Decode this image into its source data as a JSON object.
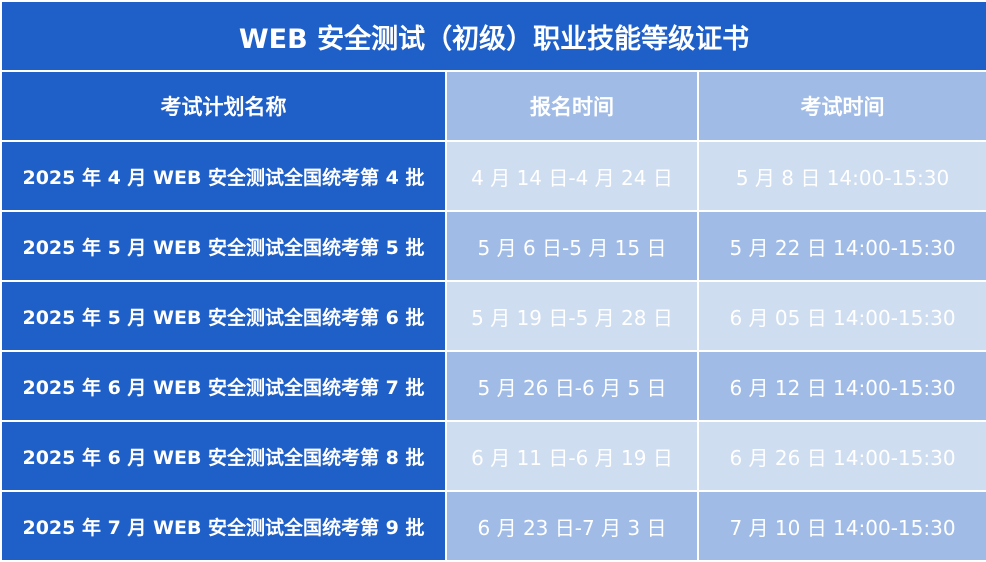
{
  "title": "WEB 安全测试（初级）职业技能等级证书",
  "headers": [
    "考试计划名称",
    "报名时间",
    "考试时间"
  ],
  "rows": [
    [
      "2025 年 4 月 WEB 安全测试全国统考第 4 批",
      "4 月 14 日-4 月 24 日",
      "5 月 8 日  14:00-15:30"
    ],
    [
      "2025 年 5 月 WEB 安全测试全国统考第 5 批",
      "5 月 6 日-5 月 15 日",
      "5 月 22 日  14:00-15:30"
    ],
    [
      "2025 年 5 月 WEB 安全测试全国统考第 6 批",
      "5 月 19 日-5 月 28 日",
      "6 月 05 日  14:00-15:30"
    ],
    [
      "2025 年 6 月 WEB 安全测试全国统考第 7 批",
      "5 月 26 日-6 月 5 日",
      "6 月 12 日  14:00-15:30"
    ],
    [
      "2025 年 6 月 WEB 安全测试全国统考第 8 批",
      "6 月 11 日-6 月 19 日",
      "6 月 26 日  14:00-15:30"
    ],
    [
      "2025 年 7 月 WEB 安全测试全国统考第 9 批",
      "6 月 23 日-7 月 3 日",
      "7 月 10 日  14:00-15:30"
    ]
  ],
  "colors": {
    "dark_blue": "#1f5fc8",
    "light_blue": "#cfddf0",
    "mid_blue": "#a0bce6"
  }
}
